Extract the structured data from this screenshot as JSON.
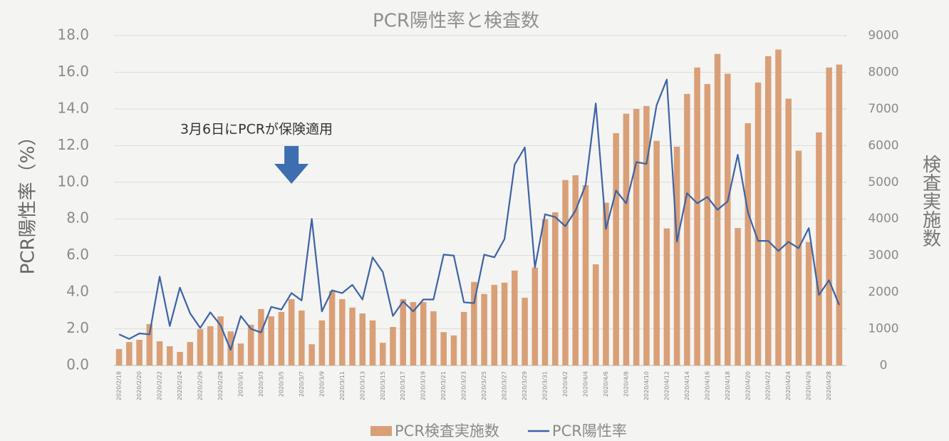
{
  "chart_data": {
    "type": "combo",
    "title": "PCR陽性率と検査数",
    "annotation": "3月6日にPCRが保険適用",
    "ylabel": "PCR陽性率（%）",
    "y2label": "検査実施数",
    "categories": [
      "2020/2/18",
      null,
      "2020/2/20",
      null,
      "2020/2/22",
      null,
      "2020/2/24",
      null,
      "2020/2/26",
      null,
      "2020/2/28",
      null,
      "2020/3/1",
      null,
      "2020/3/3",
      null,
      "2020/3/5",
      null,
      "2020/3/7",
      null,
      "2020/3/9",
      null,
      "2020/3/11",
      null,
      "2020/3/13",
      null,
      "2020/3/15",
      null,
      "2020/3/17",
      null,
      "2020/3/19",
      null,
      "2020/3/21",
      null,
      "2020/3/23",
      null,
      "2020/3/25",
      null,
      "2020/3/27",
      null,
      "2020/3/29",
      null,
      "2020/3/31",
      null,
      "2020/4/2",
      null,
      "2020/4/4",
      null,
      "2020/4/6",
      null,
      "2020/4/8",
      null,
      "2020/4/10",
      null,
      "2020/4/12",
      null,
      "2020/4/14",
      null,
      "2020/4/16",
      null,
      "2020/4/18",
      null,
      "2020/4/20",
      null,
      "2020/4/22",
      null,
      "2020/4/24",
      null,
      "2020/4/26",
      null,
      "2020/4/28",
      null
    ],
    "series": [
      {
        "name": "PCR検査実施数",
        "type": "bar",
        "axis": "y2",
        "color": "#d9a077",
        "values": [
          450,
          640,
          700,
          1130,
          660,
          525,
          370,
          640,
          990,
          1070,
          1340,
          930,
          600,
          1110,
          1540,
          1340,
          1460,
          1810,
          1500,
          580,
          1230,
          2040,
          1810,
          1580,
          1420,
          1230,
          620,
          1050,
          1810,
          1730,
          1730,
          1480,
          910,
          820,
          1460,
          2280,
          1950,
          2200,
          2260,
          2590,
          1850,
          2670,
          3990,
          4180,
          5060,
          5190,
          4920,
          2760,
          4440,
          6340,
          6870,
          7000,
          7080,
          6130,
          3740,
          5970,
          7410,
          8130,
          7680,
          8500,
          7960,
          3750,
          6610,
          7720,
          8440,
          8620,
          7280,
          5860,
          3370,
          6360,
          8130,
          8210
        ]
      },
      {
        "name": "PCR陽性率",
        "type": "line",
        "color": "#3d62a6",
        "values": [
          1.7,
          1.45,
          1.75,
          1.7,
          4.85,
          2.15,
          4.25,
          2.85,
          2.05,
          2.9,
          2.2,
          0.85,
          2.7,
          2.0,
          1.8,
          3.2,
          3.05,
          3.95,
          3.55,
          8.0,
          2.95,
          4.1,
          3.95,
          4.4,
          3.6,
          5.9,
          5.1,
          2.7,
          3.5,
          2.95,
          3.6,
          3.6,
          6.05,
          6.0,
          3.45,
          3.4,
          6.05,
          5.9,
          6.9,
          10.95,
          11.9,
          5.35,
          8.25,
          8.1,
          7.6,
          8.45,
          9.85,
          14.3,
          7.45,
          9.55,
          8.85,
          11.1,
          11.0,
          14.2,
          15.6,
          6.75,
          9.4,
          8.85,
          9.2,
          8.5,
          8.95,
          11.5,
          8.35,
          6.8,
          6.8,
          6.25,
          6.75,
          6.4,
          7.5,
          3.85,
          4.65,
          3.3
        ]
      }
    ],
    "ylim": [
      0,
      18
    ],
    "yticks": [
      {
        "value": 0,
        "label": "0.0"
      },
      {
        "value": 2,
        "label": "2.0"
      },
      {
        "value": 4,
        "label": "4.0"
      },
      {
        "value": 6,
        "label": "6.0"
      },
      {
        "value": 8,
        "label": "8.0"
      },
      {
        "value": 10,
        "label": "10.0"
      },
      {
        "value": 12,
        "label": "12.0"
      },
      {
        "value": 14,
        "label": "14.0"
      },
      {
        "value": 16,
        "label": "16.0"
      },
      {
        "value": 18,
        "label": "18.0"
      }
    ],
    "y2lim": [
      0,
      9000
    ],
    "y2ticks": [
      0,
      1000,
      2000,
      3000,
      4000,
      5000,
      6000,
      7000,
      8000,
      9000
    ],
    "grid": true
  }
}
